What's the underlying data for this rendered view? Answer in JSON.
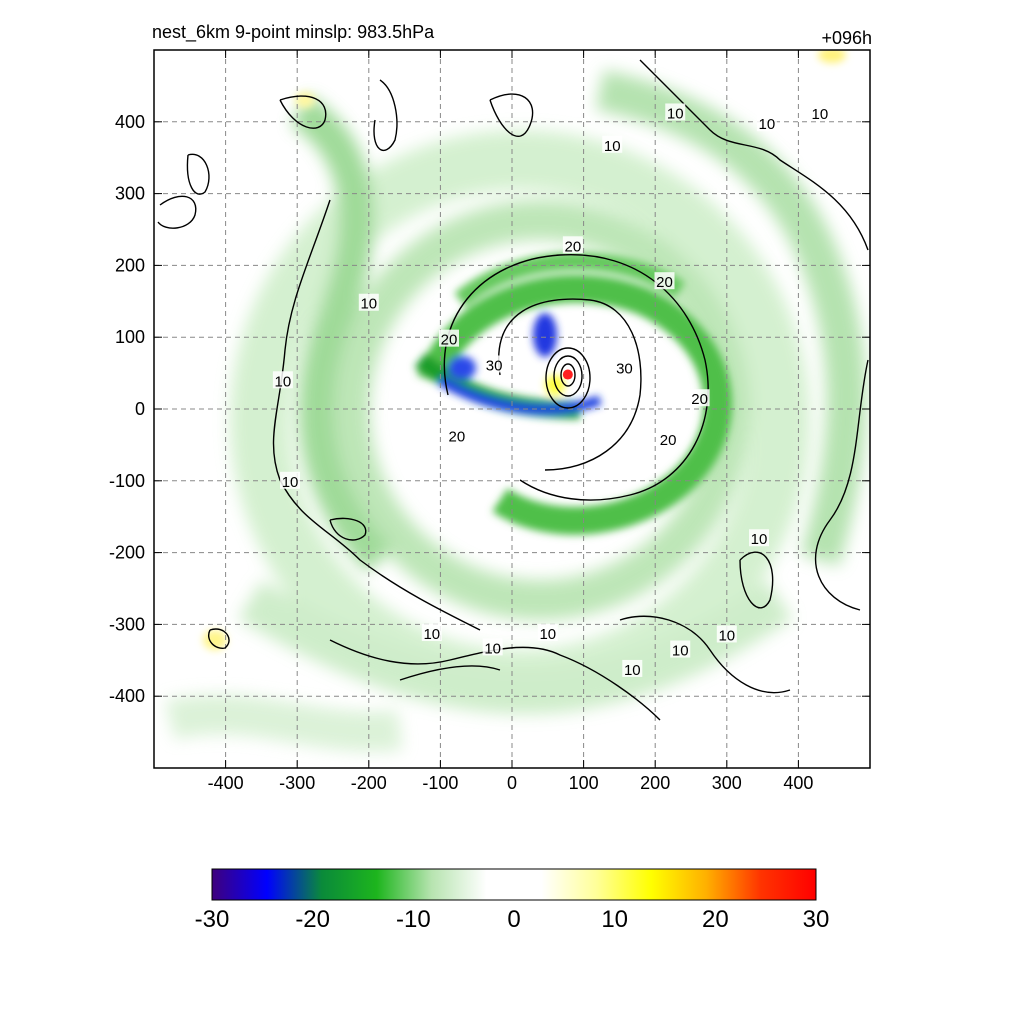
{
  "header": {
    "title": "nest_6km  9-point minslp: 983.5hPa",
    "forecast_hour": "+096h"
  },
  "chart_data": {
    "type": "heatmap",
    "title": "nest_6km  9-point minslp: 983.5hPa",
    "valid_label": "+096h",
    "xlabel": "",
    "ylabel": "",
    "xlim": [
      -500,
      500
    ],
    "ylim": [
      -500,
      500
    ],
    "x_ticks": [
      -400,
      -300,
      -200,
      -100,
      0,
      100,
      200,
      300,
      400
    ],
    "y_ticks": [
      400,
      300,
      200,
      100,
      0,
      -100,
      -200,
      -300,
      -400
    ],
    "grid": true,
    "colorbar": {
      "ticks": [
        -30,
        -20,
        -10,
        0,
        10,
        20,
        30
      ],
      "range": [
        -30,
        30
      ],
      "stops": [
        "#3f007d",
        "#0000ff",
        "#0a8a3a",
        "#1db51d",
        "#b7e4b0",
        "#ffffff",
        "#ffffff",
        "#ffff99",
        "#ffff00",
        "#ffb000",
        "#ff3300",
        "#ff0000"
      ]
    },
    "center_marker": {
      "x": 78,
      "y": 48,
      "color": "#ff2020"
    },
    "contour_levels": [
      10,
      20,
      30
    ],
    "contour_labels": [
      {
        "text": "10",
        "x": 140,
        "y": 368
      },
      {
        "text": "10",
        "x": 430,
        "y": 412
      },
      {
        "text": "10",
        "x": 228,
        "y": 413
      },
      {
        "text": "10",
        "x": 356,
        "y": 398
      },
      {
        "text": "10",
        "x": -200,
        "y": 148
      },
      {
        "text": "10",
        "x": -320,
        "y": 40
      },
      {
        "text": "10",
        "x": -310,
        "y": -100
      },
      {
        "text": "10",
        "x": -112,
        "y": -312
      },
      {
        "text": "10",
        "x": -27,
        "y": -332
      },
      {
        "text": "10",
        "x": 50,
        "y": -312
      },
      {
        "text": "10",
        "x": 235,
        "y": -335
      },
      {
        "text": "10",
        "x": 300,
        "y": -314
      },
      {
        "text": "10",
        "x": 345,
        "y": -180
      },
      {
        "text": "10",
        "x": 168,
        "y": -362
      },
      {
        "text": "20",
        "x": 85,
        "y": 228
      },
      {
        "text": "20",
        "x": 213,
        "y": 178
      },
      {
        "text": "20",
        "x": -88,
        "y": 98
      },
      {
        "text": "20",
        "x": -77,
        "y": -37
      },
      {
        "text": "20",
        "x": 262,
        "y": 15
      },
      {
        "text": "20",
        "x": 218,
        "y": -42
      },
      {
        "text": "30",
        "x": -25,
        "y": 62
      },
      {
        "text": "30",
        "x": 157,
        "y": 58
      }
    ]
  }
}
